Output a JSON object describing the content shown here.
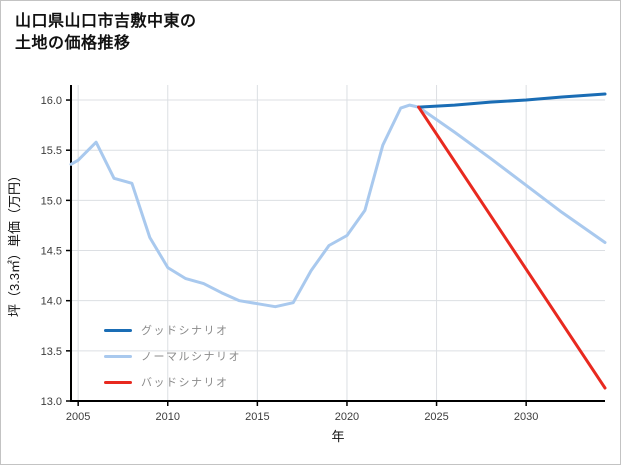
{
  "title": {
    "line1": "山口県山口市吉敷中東の",
    "line2": "土地の価格推移"
  },
  "chart_data": {
    "type": "line",
    "title": "山口県山口市吉敷中東の土地の価格推移",
    "xlabel": "年",
    "ylabel": "坪（3.3㎡）単価（万円）",
    "xlim": [
      2004.6,
      2034.4
    ],
    "ylim": [
      13.0,
      16.15
    ],
    "xticks": [
      2005,
      2010,
      2015,
      2020,
      2025,
      2030
    ],
    "yticks": [
      13.0,
      13.5,
      14.0,
      14.5,
      15.0,
      15.5,
      16.0
    ],
    "grid": true,
    "legend_position": "lower-left",
    "colors": {
      "grid": "#dcdfe3",
      "axis": "#000000",
      "tick_label": "#3c3c3c",
      "legend_text": "#8b8b8b"
    },
    "series": [
      {
        "name": "グッドシナリオ",
        "color": "#1a6db5",
        "x": [
          2024,
          2026,
          2028,
          2030,
          2032,
          2034.4
        ],
        "values": [
          15.93,
          15.95,
          15.98,
          16.0,
          16.03,
          16.06
        ]
      },
      {
        "name": "ノーマルシナリオ",
        "color": "#a9c9ee",
        "x": [
          2004.6,
          2005,
          2006,
          2007,
          2008,
          2009,
          2010,
          2011,
          2012,
          2013,
          2014,
          2015,
          2016,
          2017,
          2018,
          2019,
          2020,
          2021,
          2022,
          2023,
          2023.5,
          2024,
          2026,
          2028,
          2030,
          2032,
          2034.4
        ],
        "values": [
          15.36,
          15.4,
          15.58,
          15.22,
          15.17,
          14.63,
          14.33,
          14.22,
          14.17,
          14.08,
          14.0,
          13.97,
          13.94,
          13.98,
          14.3,
          14.55,
          14.65,
          14.9,
          15.55,
          15.92,
          15.95,
          15.93,
          15.68,
          15.42,
          15.15,
          14.88,
          14.58
        ]
      },
      {
        "name": "バッドシナリオ",
        "color": "#e8291f",
        "x": [
          2024,
          2034.4
        ],
        "values": [
          15.93,
          13.13
        ]
      }
    ]
  }
}
